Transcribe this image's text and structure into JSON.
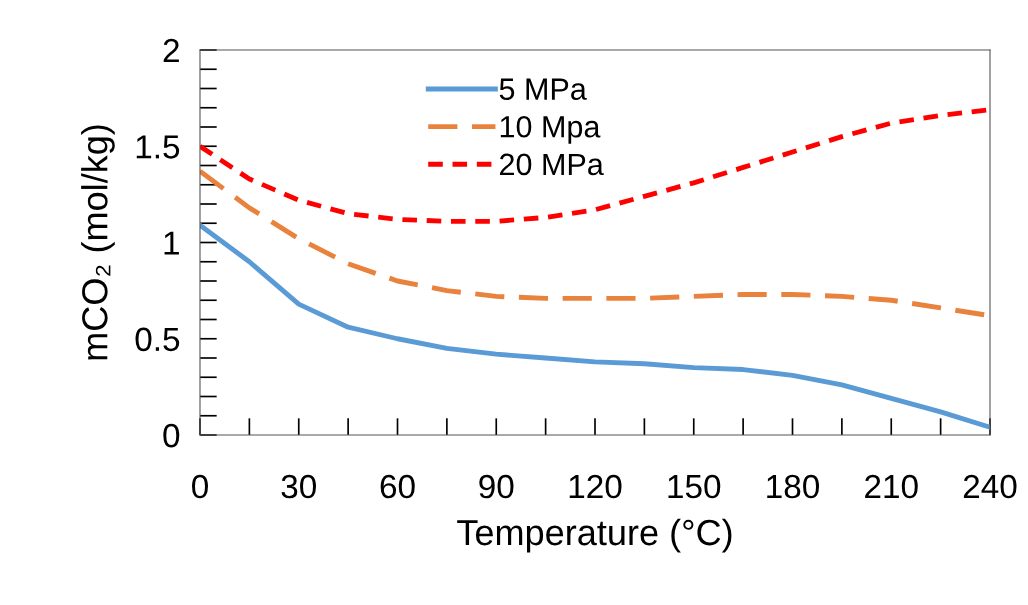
{
  "chart_data": {
    "type": "line",
    "xlabel": "Temperature (°C)",
    "ylabel": "mCO₂ (mol/kg)",
    "x": [
      0,
      15,
      30,
      45,
      60,
      75,
      90,
      105,
      120,
      135,
      150,
      165,
      180,
      195,
      210,
      225,
      240
    ],
    "series": [
      {
        "name": "5 MPa",
        "color": "#5b9bd5",
        "line_style": "solid",
        "values": [
          1.09,
          0.9,
          0.68,
          0.56,
          0.5,
          0.45,
          0.42,
          0.4,
          0.38,
          0.37,
          0.35,
          0.34,
          0.31,
          0.26,
          0.19,
          0.12,
          0.04
        ]
      },
      {
        "name": "10 Mpa",
        "color": "#e8823c",
        "line_style": "dashed",
        "values": [
          1.37,
          1.18,
          1.02,
          0.89,
          0.8,
          0.75,
          0.72,
          0.71,
          0.71,
          0.71,
          0.72,
          0.73,
          0.73,
          0.72,
          0.7,
          0.66,
          0.62
        ]
      },
      {
        "name": "20 MPa",
        "color": "#ff0000",
        "line_style": "dotted",
        "values": [
          1.5,
          1.33,
          1.22,
          1.15,
          1.12,
          1.11,
          1.11,
          1.13,
          1.17,
          1.24,
          1.31,
          1.39,
          1.47,
          1.55,
          1.62,
          1.66,
          1.69
        ]
      }
    ],
    "xlim": [
      0,
      240
    ],
    "xticks": [
      0,
      30,
      60,
      90,
      120,
      150,
      180,
      210,
      240
    ],
    "ylim": [
      0,
      2
    ],
    "yticks": [
      0,
      0.5,
      1,
      1.5,
      2
    ],
    "grid": false,
    "legend": "top",
    "marker": "none"
  }
}
